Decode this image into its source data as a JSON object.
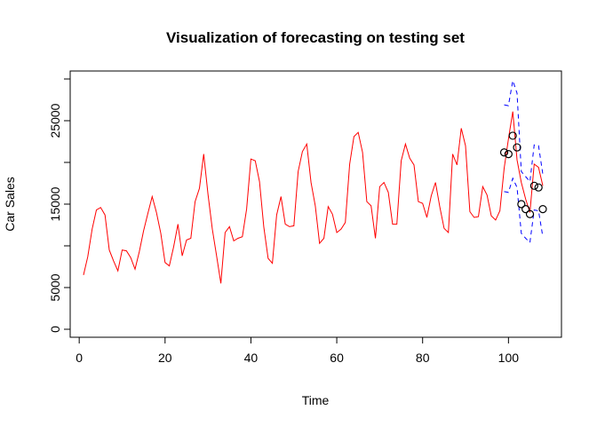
{
  "chart_data": {
    "type": "line",
    "title": "Visualization of forecasting on testing set",
    "xlabel": "Time",
    "ylabel": "Car Sales",
    "xlim": [
      0,
      108
    ],
    "ylim": [
      0,
      30000
    ],
    "xticks": [
      0,
      20,
      40,
      60,
      80,
      100
    ],
    "yticks": [
      0,
      5000,
      15000,
      25000
    ],
    "grid": false,
    "colors": {
      "series": "#ff0000",
      "interval": "#0000ff",
      "points": "#000000"
    },
    "series": [
      {
        "name": "",
        "style": "solid-line",
        "x": [
          1,
          2,
          3,
          4,
          5,
          6,
          7,
          8,
          9,
          10,
          11,
          12,
          13,
          14,
          15,
          16,
          17,
          18,
          19,
          20,
          21,
          22,
          23,
          24,
          25,
          26,
          27,
          28,
          29,
          30,
          31,
          32,
          33,
          34,
          35,
          36,
          37,
          38,
          39,
          40,
          41,
          42,
          43,
          44,
          45,
          46,
          47,
          48,
          49,
          50,
          51,
          52,
          53,
          54,
          55,
          56,
          57,
          58,
          59,
          60,
          61,
          62,
          63,
          64,
          65,
          66,
          67,
          68,
          69,
          70,
          71,
          72,
          73,
          74,
          75,
          76,
          77,
          78,
          79,
          80,
          81,
          82,
          83,
          84,
          85,
          86,
          87,
          88,
          89,
          90,
          91,
          92,
          93,
          94,
          95,
          96,
          97,
          98,
          99,
          100,
          101,
          102,
          103,
          104,
          105,
          106,
          107,
          108
        ],
        "values": [
          6500,
          8700,
          12000,
          14300,
          14600,
          13700,
          9500,
          8200,
          7000,
          9500,
          9400,
          8600,
          7200,
          9300,
          11800,
          13900,
          15900,
          14000,
          11500,
          8000,
          7600,
          9900,
          12600,
          8800,
          10700,
          10900,
          15300,
          16900,
          21000,
          16200,
          12000,
          8800,
          5500,
          11600,
          12300,
          10600,
          10900,
          11100,
          14400,
          20400,
          20200,
          17700,
          12300,
          8500,
          7900,
          13700,
          15900,
          12600,
          12300,
          12400,
          18900,
          21300,
          22200,
          17600,
          14800,
          10300,
          10900,
          14700,
          13800,
          11600,
          12000,
          12800,
          19800,
          23100,
          23600,
          21200,
          15300,
          14800,
          10900,
          17100,
          17600,
          16400,
          12600,
          12600,
          20200,
          22200,
          20500,
          19700,
          15300,
          15100,
          13400,
          16000,
          17600,
          14700,
          12100,
          11600,
          21000,
          19700,
          24100,
          22000,
          14100,
          13400,
          13500,
          17100,
          16100,
          13600,
          13100,
          14200,
          19300,
          22800,
          26100,
          20300,
          17600,
          15600,
          14000,
          19800,
          19400,
          17200
        ]
      },
      {
        "name": "",
        "style": "dashed-line",
        "x": [
          99,
          100,
          101,
          102,
          103,
          104,
          105,
          106,
          107,
          108
        ],
        "values": [
          26900,
          26800,
          29800,
          28300,
          18900,
          18300,
          17700,
          22100,
          22000,
          18600
        ]
      },
      {
        "name": "",
        "style": "dashed-line",
        "x": [
          99,
          100,
          101,
          102,
          103,
          104,
          105,
          106,
          107,
          108
        ],
        "values": [
          16500,
          16400,
          18100,
          17000,
          11500,
          10900,
          10400,
          14300,
          14200,
          11100
        ]
      },
      {
        "name": "",
        "style": "open-circles",
        "x": [
          99,
          100,
          101,
          102,
          103,
          104,
          105,
          106,
          107,
          108
        ],
        "values": [
          21200,
          21000,
          23200,
          21800,
          15000,
          14400,
          13800,
          17200,
          17000,
          14400
        ]
      }
    ]
  }
}
